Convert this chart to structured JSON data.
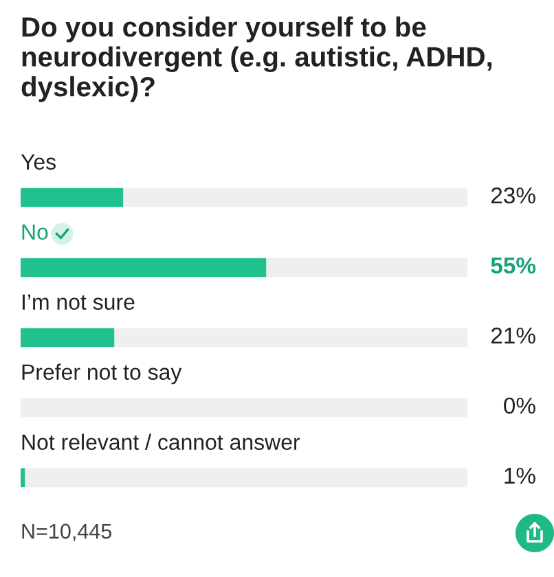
{
  "chart_data": {
    "type": "bar",
    "orientation": "horizontal",
    "stacked": true,
    "title": "Do you consider yourself to be neurodivergent (e.g. autistic, ADHD, dyslexic)?",
    "categories": [
      "Yes",
      "No",
      "I’m not sure",
      "Prefer not to say",
      "Not relevant / cannot answer"
    ],
    "series": [
      {
        "color": "#20c08f",
        "values": [
          23,
          55,
          21,
          0,
          1
        ],
        "value_labels": [
          "23%",
          "55%",
          "21%",
          "0%",
          "1%"
        ]
      },
      {
        "color": "#efefef",
        "values": [
          77,
          45,
          79,
          100,
          99
        ]
      }
    ],
    "xlim": [
      0,
      100
    ],
    "tick_labels": false,
    "annotations": [
      "N=10,445"
    ]
  }
}
